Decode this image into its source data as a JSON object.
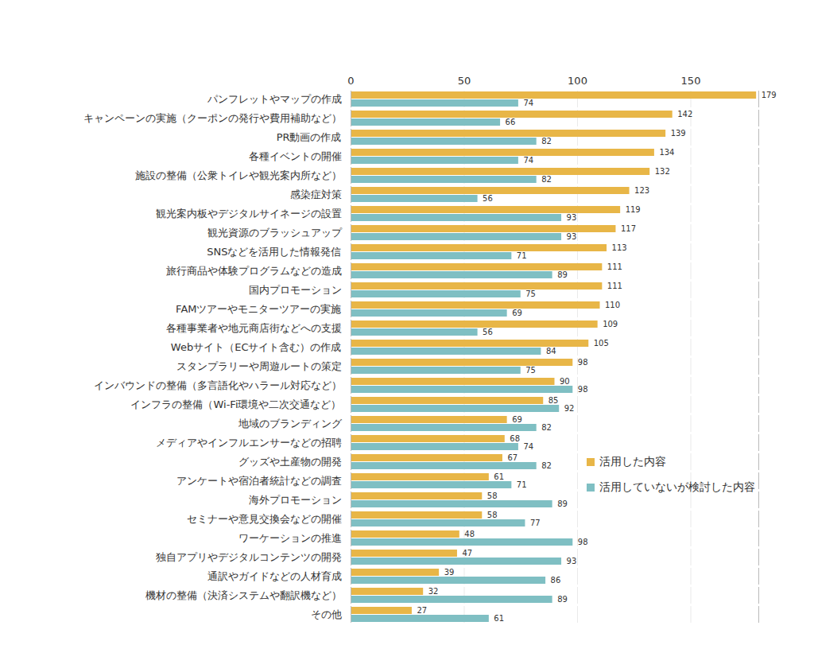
{
  "chart_data": {
    "type": "bar",
    "orientation": "horizontal",
    "categories": [
      "パンフレットやマップの作成",
      "キャンペーンの実施（クーポンの発行や費用補助など）",
      "PR動画の作成",
      "各種イベントの開催",
      "施設の整備（公衆トイレや観光案内所など）",
      "感染症対策",
      "観光案内板やデジタルサイネージの設置",
      "観光資源のブラッシュアップ",
      "SNSなどを活用した情報発信",
      "旅行商品や体験プログラムなどの造成",
      "国内プロモーション",
      "FAMツアーやモニターツアーの実施",
      "各種事業者や地元商店街などへの支援",
      "Webサイト（ECサイト含む）の作成",
      "スタンプラリーや周遊ルートの策定",
      "インバウンドの整備（多言語化やハラール対応など）",
      "インフラの整備（Wi-Fi環境や二次交通など）",
      "地域のブランディング",
      "メディアやインフルエンサーなどの招聘",
      "グッズや土産物の開発",
      "アンケートや宿泊者統計などの調査",
      "海外プロモーション",
      "セミナーや意見交換会などの開催",
      "ワーケーションの推進",
      "独自アプリやデジタルコンテンツの開発",
      "通訳やガイドなどの人材育成",
      "機材の整備（決済システムや翻訳機など）",
      "その他"
    ],
    "series": [
      {
        "name": "活用した内容",
        "color": "#e8b647",
        "values": [
          179,
          142,
          139,
          134,
          132,
          123,
          119,
          117,
          113,
          111,
          111,
          110,
          109,
          105,
          98,
          90,
          85,
          69,
          68,
          67,
          61,
          58,
          58,
          48,
          47,
          39,
          32,
          27
        ]
      },
      {
        "name": "活用していないが検討した内容",
        "color": "#7fbfc3",
        "values": [
          74,
          66,
          82,
          74,
          82,
          56,
          93,
          93,
          71,
          89,
          75,
          69,
          56,
          84,
          75,
          98,
          92,
          82,
          74,
          82,
          71,
          89,
          77,
          98,
          93,
          86,
          89,
          61
        ]
      }
    ],
    "xlim": [
      0,
      180
    ],
    "xticks": [
      0,
      50,
      100,
      150
    ],
    "grid": true,
    "data_labels": true,
    "legend": "lower right"
  }
}
